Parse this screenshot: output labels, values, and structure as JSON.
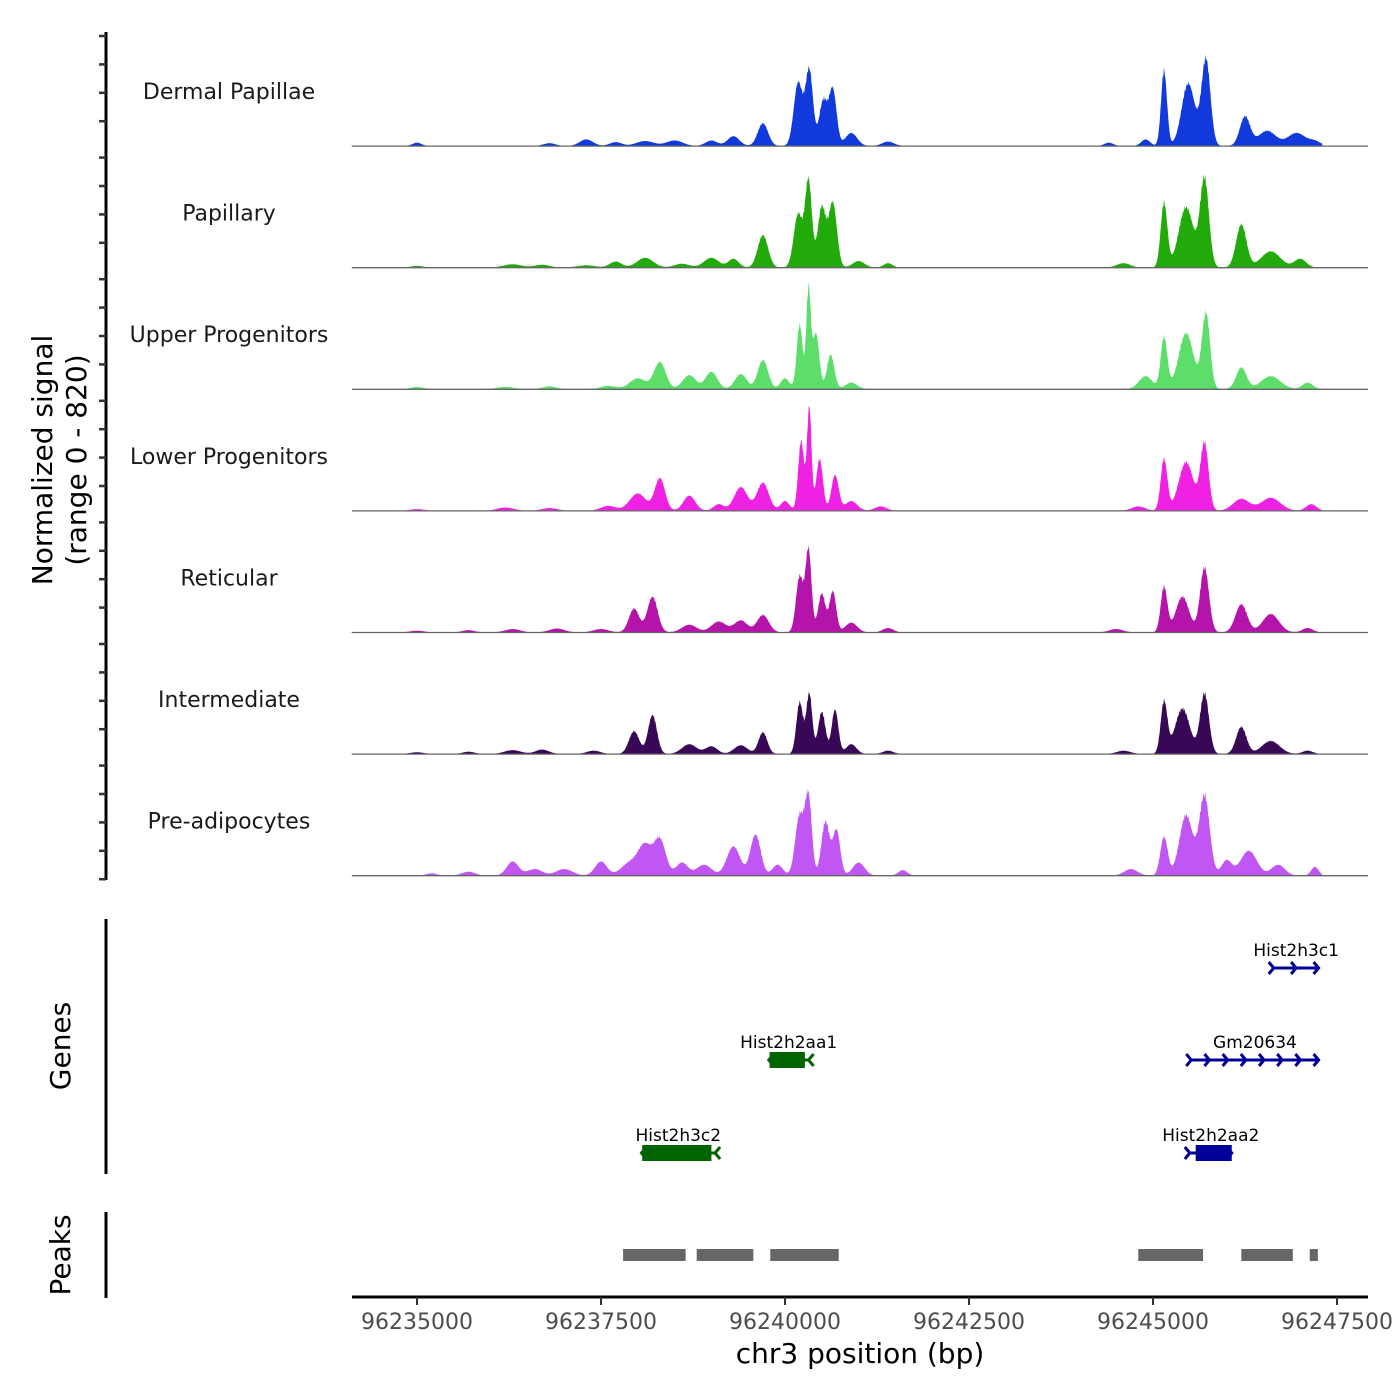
{
  "chart_data": {
    "type": "area",
    "title": "",
    "xlabel": "chr3 position (bp)",
    "ylabel": "Normalized signal\n(range 0 - 820)",
    "ylabel_lines": [
      "Normalized signal",
      "(range 0 - 820)"
    ],
    "ylim": [
      0,
      820
    ],
    "xlim": [
      96234100,
      96247700
    ],
    "x_ticks": [
      96235000,
      96237500,
      96240000,
      96242500,
      96245000,
      96247500
    ],
    "x_tick_labels": [
      "96235000",
      "96237500",
      "96240000",
      "96242500",
      "96245000",
      "96247500"
    ],
    "grid": false,
    "legend": "none",
    "signal_range": [
      96234100,
      96247300
    ],
    "tracks": [
      {
        "name": "Dermal Papillae",
        "color": "#1139DB",
        "peaks": [
          [
            96235000,
            30,
            60
          ],
          [
            96236800,
            25,
            80
          ],
          [
            96237300,
            60,
            90
          ],
          [
            96237700,
            35,
            80
          ],
          [
            96238100,
            45,
            120
          ],
          [
            96238500,
            50,
            110
          ],
          [
            96239000,
            50,
            80
          ],
          [
            96239300,
            90,
            80
          ],
          [
            96239700,
            210,
            70
          ],
          [
            96240180,
            590,
            60
          ],
          [
            96240330,
            700,
            50
          ],
          [
            96240520,
            420,
            55
          ],
          [
            96240650,
            520,
            50
          ],
          [
            96240900,
            120,
            80
          ],
          [
            96241400,
            40,
            80
          ],
          [
            96244400,
            30,
            60
          ],
          [
            96244900,
            60,
            60
          ],
          [
            96245150,
            700,
            40
          ],
          [
            96245480,
            580,
            90
          ],
          [
            96245720,
            800,
            60
          ],
          [
            96246250,
            270,
            70
          ],
          [
            96246550,
            140,
            120
          ],
          [
            96246950,
            120,
            120
          ],
          [
            96247200,
            40,
            80
          ]
        ]
      },
      {
        "name": "Papillary",
        "color": "#21AA0A",
        "peaks": [
          [
            96235000,
            15,
            80
          ],
          [
            96236300,
            30,
            120
          ],
          [
            96236700,
            25,
            100
          ],
          [
            96237300,
            20,
            120
          ],
          [
            96237700,
            55,
            80
          ],
          [
            96238100,
            90,
            110
          ],
          [
            96238600,
            35,
            100
          ],
          [
            96239000,
            90,
            100
          ],
          [
            96239300,
            80,
            70
          ],
          [
            96239700,
            300,
            70
          ],
          [
            96240180,
            500,
            60
          ],
          [
            96240320,
            800,
            45
          ],
          [
            96240500,
            560,
            55
          ],
          [
            96240650,
            600,
            55
          ],
          [
            96241000,
            60,
            80
          ],
          [
            96241400,
            40,
            60
          ],
          [
            96244600,
            40,
            90
          ],
          [
            96245150,
            600,
            45
          ],
          [
            96245450,
            560,
            100
          ],
          [
            96245700,
            820,
            60
          ],
          [
            96246200,
            400,
            70
          ],
          [
            96246600,
            150,
            130
          ],
          [
            96247000,
            80,
            80
          ]
        ]
      },
      {
        "name": "Upper Progenitors",
        "color": "#5DDE6A",
        "peaks": [
          [
            96235000,
            20,
            80
          ],
          [
            96236200,
            20,
            110
          ],
          [
            96236800,
            25,
            90
          ],
          [
            96237600,
            30,
            100
          ],
          [
            96238000,
            100,
            110
          ],
          [
            96238300,
            250,
            80
          ],
          [
            96238700,
            130,
            90
          ],
          [
            96239000,
            160,
            80
          ],
          [
            96239400,
            140,
            80
          ],
          [
            96239700,
            270,
            70
          ],
          [
            96240000,
            100,
            60
          ],
          [
            96240200,
            600,
            40
          ],
          [
            96240320,
            920,
            30
          ],
          [
            96240420,
            520,
            45
          ],
          [
            96240620,
            320,
            50
          ],
          [
            96240900,
            60,
            80
          ],
          [
            96244900,
            120,
            90
          ],
          [
            96245150,
            480,
            45
          ],
          [
            96245450,
            520,
            100
          ],
          [
            96245720,
            700,
            55
          ],
          [
            96246200,
            200,
            70
          ],
          [
            96246600,
            120,
            130
          ],
          [
            96247100,
            60,
            70
          ]
        ]
      },
      {
        "name": "Lower Progenitors",
        "color": "#EF22E3",
        "peaks": [
          [
            96235000,
            15,
            90
          ],
          [
            96236200,
            30,
            110
          ],
          [
            96236800,
            25,
            100
          ],
          [
            96237600,
            45,
            100
          ],
          [
            96238000,
            160,
            110
          ],
          [
            96238300,
            300,
            70
          ],
          [
            96238700,
            140,
            80
          ],
          [
            96239100,
            60,
            70
          ],
          [
            96239400,
            220,
            90
          ],
          [
            96239700,
            260,
            80
          ],
          [
            96240000,
            90,
            60
          ],
          [
            96240220,
            650,
            40
          ],
          [
            96240330,
            960,
            30
          ],
          [
            96240470,
            480,
            45
          ],
          [
            96240680,
            330,
            50
          ],
          [
            96240900,
            90,
            80
          ],
          [
            96241300,
            40,
            80
          ],
          [
            96244800,
            40,
            90
          ],
          [
            96245150,
            480,
            45
          ],
          [
            96245450,
            450,
            100
          ],
          [
            96245700,
            620,
            55
          ],
          [
            96246200,
            110,
            110
          ],
          [
            96246600,
            120,
            130
          ],
          [
            96247150,
            60,
            70
          ]
        ]
      },
      {
        "name": "Reticular",
        "color": "#B414A9",
        "peaks": [
          [
            96235000,
            15,
            90
          ],
          [
            96235700,
            20,
            80
          ],
          [
            96236300,
            30,
            100
          ],
          [
            96236900,
            35,
            100
          ],
          [
            96237500,
            30,
            100
          ],
          [
            96237950,
            220,
            70
          ],
          [
            96238200,
            330,
            70
          ],
          [
            96238700,
            70,
            100
          ],
          [
            96239100,
            100,
            100
          ],
          [
            96239400,
            110,
            90
          ],
          [
            96239700,
            160,
            80
          ],
          [
            96240200,
            520,
            50
          ],
          [
            96240320,
            760,
            40
          ],
          [
            96240500,
            360,
            50
          ],
          [
            96240650,
            380,
            45
          ],
          [
            96240900,
            90,
            80
          ],
          [
            96241400,
            40,
            70
          ],
          [
            96244500,
            30,
            90
          ],
          [
            96245150,
            420,
            45
          ],
          [
            96245400,
            330,
            90
          ],
          [
            96245700,
            600,
            60
          ],
          [
            96246200,
            260,
            80
          ],
          [
            96246600,
            170,
            110
          ],
          [
            96247100,
            40,
            70
          ]
        ]
      },
      {
        "name": "Intermediate",
        "color": "#380857",
        "peaks": [
          [
            96235000,
            15,
            90
          ],
          [
            96235700,
            20,
            80
          ],
          [
            96236300,
            35,
            110
          ],
          [
            96236700,
            40,
            90
          ],
          [
            96237400,
            30,
            90
          ],
          [
            96237950,
            210,
            70
          ],
          [
            96238200,
            360,
            60
          ],
          [
            96238700,
            90,
            100
          ],
          [
            96239000,
            70,
            80
          ],
          [
            96239400,
            80,
            90
          ],
          [
            96239700,
            200,
            60
          ],
          [
            96240200,
            480,
            45
          ],
          [
            96240330,
            560,
            40
          ],
          [
            96240500,
            390,
            50
          ],
          [
            96240680,
            410,
            45
          ],
          [
            96240900,
            90,
            70
          ],
          [
            96241400,
            30,
            70
          ],
          [
            96244600,
            30,
            90
          ],
          [
            96245150,
            480,
            45
          ],
          [
            96245400,
            420,
            100
          ],
          [
            96245700,
            560,
            60
          ],
          [
            96246200,
            250,
            70
          ],
          [
            96246600,
            120,
            120
          ],
          [
            96247100,
            30,
            70
          ]
        ]
      },
      {
        "name": "Pre-adipocytes",
        "color": "#C157F2",
        "peaks": [
          [
            96235200,
            20,
            70
          ],
          [
            96235700,
            35,
            90
          ],
          [
            96236300,
            130,
            80
          ],
          [
            96236600,
            60,
            100
          ],
          [
            96237000,
            60,
            110
          ],
          [
            96237500,
            130,
            80
          ],
          [
            96237900,
            120,
            120
          ],
          [
            96238100,
            260,
            90
          ],
          [
            96238300,
            330,
            80
          ],
          [
            96238600,
            120,
            80
          ],
          [
            96238900,
            100,
            100
          ],
          [
            96239300,
            270,
            90
          ],
          [
            96239600,
            380,
            70
          ],
          [
            96239900,
            100,
            70
          ],
          [
            96240200,
            560,
            60
          ],
          [
            96240320,
            700,
            45
          ],
          [
            96240550,
            500,
            55
          ],
          [
            96240700,
            420,
            50
          ],
          [
            96241000,
            120,
            80
          ],
          [
            96241600,
            50,
            60
          ],
          [
            96244700,
            60,
            90
          ],
          [
            96245150,
            360,
            50
          ],
          [
            96245450,
            560,
            90
          ],
          [
            96245700,
            740,
            70
          ],
          [
            96246000,
            140,
            70
          ],
          [
            96246300,
            230,
            110
          ],
          [
            96246700,
            100,
            90
          ],
          [
            96247200,
            80,
            50
          ]
        ]
      }
    ],
    "genes": [
      {
        "name": "Hist2h3c1",
        "start": 96246640,
        "end": 96247250,
        "strand": "+",
        "row": 0,
        "color": "#000099",
        "exon": null
      },
      {
        "name": "Gm20634",
        "start": 96245520,
        "end": 96247250,
        "strand": "+",
        "row": 1,
        "color": "#000099",
        "exon": null
      },
      {
        "name": "Hist2h2aa1",
        "start": 96239780,
        "end": 96240320,
        "strand": "-",
        "row": 1,
        "color": "#006400",
        "exon": [
          96239790,
          96240270
        ]
      },
      {
        "name": "Hist2h3c2",
        "start": 96238050,
        "end": 96239050,
        "strand": "-",
        "row": 2,
        "color": "#006400",
        "exon": [
          96238060,
          96239000
        ]
      },
      {
        "name": "Hist2h2aa2",
        "start": 96245500,
        "end": 96246070,
        "strand": "+",
        "row": 2,
        "color": "#000099",
        "exon": [
          96245580,
          96246070
        ]
      }
    ],
    "peaks": [
      {
        "start": 96237800,
        "end": 96238650
      },
      {
        "start": 96238800,
        "end": 96239570
      },
      {
        "start": 96239800,
        "end": 96240730
      },
      {
        "start": 96244800,
        "end": 96245680
      },
      {
        "start": 96246200,
        "end": 96246900
      },
      {
        "start": 96247130,
        "end": 96247240
      }
    ],
    "panel_labels": {
      "genes": "Genes",
      "peaks": "Peaks"
    },
    "peak_color": "#666666"
  }
}
